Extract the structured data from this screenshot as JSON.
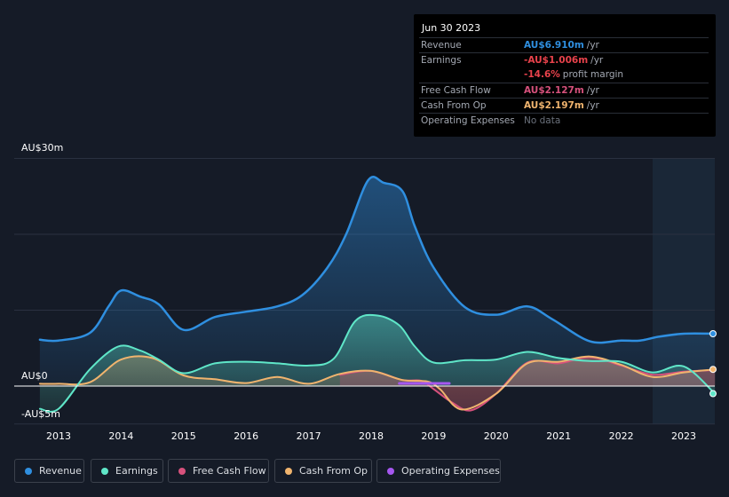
{
  "tooltip": {
    "date": "Jun 30 2023",
    "rows": [
      {
        "label": "Revenue",
        "value": "AU$6.910m",
        "unit": "/yr",
        "color": "#2f8fe0"
      },
      {
        "label": "Earnings",
        "value": "-AU$1.006m",
        "unit": "/yr",
        "color": "#e8424b"
      },
      {
        "label": "",
        "value": "-14.6%",
        "unit": "profit margin",
        "color": "#e8424b"
      },
      {
        "label": "Free Cash Flow",
        "value": "AU$2.127m",
        "unit": "/yr",
        "color": "#d6517c"
      },
      {
        "label": "Cash From Op",
        "value": "AU$2.197m",
        "unit": "/yr",
        "color": "#f0b46e"
      },
      {
        "label": "Operating Expenses",
        "value": "No data",
        "unit": "",
        "color": "#6b717c"
      }
    ]
  },
  "legend": [
    {
      "label": "Revenue",
      "color": "#2f8fe0"
    },
    {
      "label": "Earnings",
      "color": "#5fe6c8"
    },
    {
      "label": "Free Cash Flow",
      "color": "#d6517c"
    },
    {
      "label": "Cash From Op",
      "color": "#f0b46e"
    },
    {
      "label": "Operating Expenses",
      "color": "#a557f0"
    }
  ],
  "chart_data": {
    "type": "area",
    "title": "",
    "ylabel_top": "AU$30m",
    "ylabel_zero": "AU$0",
    "ylabel_bottom": "-AU$5m",
    "ylim": [
      -5,
      30
    ],
    "xlim": [
      2012.7,
      2023.5
    ],
    "x_ticks": [
      "2013",
      "2014",
      "2015",
      "2016",
      "2017",
      "2018",
      "2019",
      "2020",
      "2021",
      "2022",
      "2023"
    ],
    "x_tick_values": [
      2013,
      2014,
      2015,
      2016,
      2017,
      2018,
      2019,
      2020,
      2021,
      2022,
      2023
    ],
    "forecast_start": 2022.5,
    "series": [
      {
        "name": "Revenue",
        "color": "#2f8fe0",
        "points": [
          [
            2012.7,
            6.1
          ],
          [
            2013.0,
            6.0
          ],
          [
            2013.5,
            7.0
          ],
          [
            2013.8,
            10.5
          ],
          [
            2014.0,
            12.6
          ],
          [
            2014.3,
            11.8
          ],
          [
            2014.6,
            10.8
          ],
          [
            2015.0,
            7.4
          ],
          [
            2015.5,
            9.1
          ],
          [
            2016.0,
            9.8
          ],
          [
            2016.5,
            10.5
          ],
          [
            2016.9,
            12.0
          ],
          [
            2017.3,
            15.6
          ],
          [
            2017.6,
            20.0
          ],
          [
            2017.95,
            27.1
          ],
          [
            2018.2,
            26.8
          ],
          [
            2018.5,
            25.7
          ],
          [
            2018.7,
            21.0
          ],
          [
            2019.0,
            15.6
          ],
          [
            2019.5,
            10.4
          ],
          [
            2020.0,
            9.4
          ],
          [
            2020.5,
            10.5
          ],
          [
            2020.9,
            8.8
          ],
          [
            2021.5,
            5.9
          ],
          [
            2022.0,
            6.0
          ],
          [
            2022.3,
            6.0
          ],
          [
            2022.6,
            6.5
          ],
          [
            2023.0,
            6.9
          ],
          [
            2023.5,
            6.9
          ]
        ]
      },
      {
        "name": "Earnings",
        "color": "#5fe6c8",
        "points": [
          [
            2012.7,
            -3.0
          ],
          [
            2013.0,
            -3.0
          ],
          [
            2013.5,
            2.2
          ],
          [
            2013.95,
            5.2
          ],
          [
            2014.3,
            4.7
          ],
          [
            2014.6,
            3.5
          ],
          [
            2015.0,
            1.7
          ],
          [
            2015.5,
            3.0
          ],
          [
            2016.0,
            3.2
          ],
          [
            2016.5,
            3.0
          ],
          [
            2017.0,
            2.7
          ],
          [
            2017.4,
            3.6
          ],
          [
            2017.75,
            8.6
          ],
          [
            2018.1,
            9.3
          ],
          [
            2018.45,
            8.0
          ],
          [
            2018.7,
            5.2
          ],
          [
            2019.0,
            3.1
          ],
          [
            2019.5,
            3.4
          ],
          [
            2020.0,
            3.5
          ],
          [
            2020.5,
            4.5
          ],
          [
            2021.0,
            3.7
          ],
          [
            2021.5,
            3.3
          ],
          [
            2022.0,
            3.2
          ],
          [
            2022.5,
            1.8
          ],
          [
            2023.0,
            2.6
          ],
          [
            2023.5,
            -1.0
          ]
        ]
      },
      {
        "name": "Free Cash Flow",
        "color": "#d6517c",
        "points": [
          [
            2017.5,
            1.5
          ],
          [
            2018.0,
            2.0
          ],
          [
            2018.5,
            0.8
          ],
          [
            2018.8,
            0.7
          ],
          [
            2019.0,
            -0.4
          ],
          [
            2019.3,
            -2.2
          ],
          [
            2019.6,
            -3.2
          ],
          [
            2020.0,
            -1.0
          ],
          [
            2020.5,
            3.1
          ],
          [
            2021.0,
            3.0
          ],
          [
            2021.5,
            3.8
          ],
          [
            2022.0,
            2.7
          ],
          [
            2022.5,
            1.5
          ],
          [
            2023.0,
            1.9
          ],
          [
            2023.5,
            2.1
          ]
        ]
      },
      {
        "name": "Cash From Op",
        "color": "#f0b46e",
        "points": [
          [
            2012.7,
            0.3
          ],
          [
            2013.0,
            0.3
          ],
          [
            2013.5,
            0.5
          ],
          [
            2014.0,
            3.5
          ],
          [
            2014.5,
            3.7
          ],
          [
            2015.0,
            1.4
          ],
          [
            2015.5,
            0.9
          ],
          [
            2016.0,
            0.4
          ],
          [
            2016.5,
            1.2
          ],
          [
            2017.0,
            0.3
          ],
          [
            2017.5,
            1.6
          ],
          [
            2018.0,
            2.0
          ],
          [
            2018.5,
            0.8
          ],
          [
            2018.9,
            0.6
          ],
          [
            2019.1,
            -0.4
          ],
          [
            2019.45,
            -3.1
          ],
          [
            2020.0,
            -1.0
          ],
          [
            2020.5,
            3.0
          ],
          [
            2021.0,
            3.2
          ],
          [
            2021.5,
            3.9
          ],
          [
            2022.0,
            2.8
          ],
          [
            2022.5,
            1.2
          ],
          [
            2023.0,
            1.8
          ],
          [
            2023.5,
            2.2
          ]
        ]
      },
      {
        "name": "Operating Expenses",
        "color": "#a557f0",
        "points": [
          [
            2018.45,
            0.35
          ],
          [
            2019.25,
            0.35
          ]
        ]
      }
    ]
  }
}
